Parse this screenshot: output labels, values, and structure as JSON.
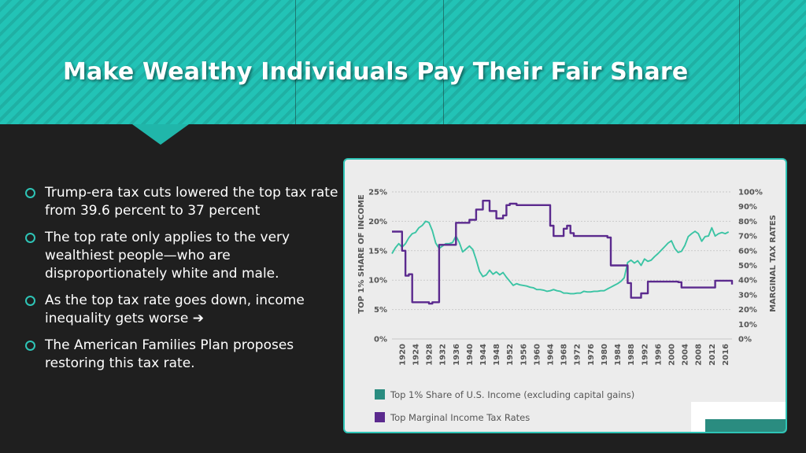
{
  "slide": {
    "title": "Make Wealthy Individuals Pay Their Fair Share",
    "bullets": [
      "Trump-era tax cuts lowered the top tax rate from 39.6 percent to 37 percent",
      "The top rate only applies to the very wealthiest people—who are disproportionately white and male.",
      "As the top tax rate goes down, income inequality gets worse ➔",
      "The American Families Plan proposes restoring this tax rate."
    ],
    "colors": {
      "accent": "#2ec4b6",
      "background": "#1f1f1f"
    }
  },
  "chart_data": {
    "type": "line",
    "xlabel": "",
    "ylabel_left": "TOP 1% SHARE OF INCOME",
    "ylabel_right": "MARGINAL TAX RATES",
    "xlim": [
      1917,
      2018
    ],
    "ylim_left": [
      0,
      25
    ],
    "ylim_right": [
      0,
      100
    ],
    "x_ticks": [
      "1920",
      "1924",
      "1928",
      "1932",
      "1936",
      "1940",
      "1944",
      "1948",
      "1952",
      "1956",
      "1960",
      "1964",
      "1968",
      "1972",
      "1976",
      "1980",
      "1984",
      "1988",
      "1992",
      "1996",
      "2000",
      "2004",
      "2008",
      "2012",
      "2016"
    ],
    "y_ticks_left": [
      "0%",
      "5%",
      "10%",
      "15%",
      "20%",
      "25%"
    ],
    "y_ticks_right": [
      "0%",
      "10%",
      "20%",
      "30%",
      "40%",
      "50%",
      "60%",
      "70%",
      "80%",
      "90%",
      "100%"
    ],
    "grid": true,
    "legend_placement": "bottom",
    "series": [
      {
        "name": "Top 1% Share of U.S. Income (excluding capital gains)",
        "axis": "left",
        "color": "#3bc4a4",
        "points": [
          [
            1917,
            14.5
          ],
          [
            1918,
            15.5
          ],
          [
            1919,
            16.2
          ],
          [
            1920,
            15.6
          ],
          [
            1921,
            16.2
          ],
          [
            1922,
            17.2
          ],
          [
            1923,
            17.9
          ],
          [
            1924,
            18.1
          ],
          [
            1925,
            18.9
          ],
          [
            1926,
            19.3
          ],
          [
            1927,
            20.0
          ],
          [
            1928,
            19.8
          ],
          [
            1929,
            18.4
          ],
          [
            1930,
            16.3
          ],
          [
            1931,
            15.4
          ],
          [
            1932,
            15.8
          ],
          [
            1933,
            16.2
          ],
          [
            1934,
            16.2
          ],
          [
            1935,
            16.4
          ],
          [
            1936,
            17.5
          ],
          [
            1937,
            16.4
          ],
          [
            1938,
            14.8
          ],
          [
            1939,
            15.3
          ],
          [
            1940,
            15.8
          ],
          [
            1941,
            15.2
          ],
          [
            1942,
            13.5
          ],
          [
            1943,
            11.5
          ],
          [
            1944,
            10.6
          ],
          [
            1945,
            10.9
          ],
          [
            1946,
            11.7
          ],
          [
            1947,
            11.0
          ],
          [
            1948,
            11.4
          ],
          [
            1949,
            10.9
          ],
          [
            1950,
            11.3
          ],
          [
            1951,
            10.5
          ],
          [
            1952,
            9.8
          ],
          [
            1953,
            9.1
          ],
          [
            1954,
            9.4
          ],
          [
            1955,
            9.2
          ],
          [
            1956,
            9.1
          ],
          [
            1957,
            9.0
          ],
          [
            1958,
            8.8
          ],
          [
            1959,
            8.7
          ],
          [
            1960,
            8.4
          ],
          [
            1961,
            8.4
          ],
          [
            1962,
            8.3
          ],
          [
            1963,
            8.1
          ],
          [
            1964,
            8.2
          ],
          [
            1965,
            8.4
          ],
          [
            1966,
            8.2
          ],
          [
            1967,
            8.1
          ],
          [
            1968,
            7.8
          ],
          [
            1969,
            7.8
          ],
          [
            1970,
            7.7
          ],
          [
            1971,
            7.7
          ],
          [
            1972,
            7.8
          ],
          [
            1973,
            7.8
          ],
          [
            1974,
            8.1
          ],
          [
            1975,
            8.0
          ],
          [
            1976,
            8.0
          ],
          [
            1977,
            8.1
          ],
          [
            1978,
            8.1
          ],
          [
            1979,
            8.2
          ],
          [
            1980,
            8.2
          ],
          [
            1981,
            8.5
          ],
          [
            1982,
            8.8
          ],
          [
            1983,
            9.1
          ],
          [
            1984,
            9.4
          ],
          [
            1985,
            9.8
          ],
          [
            1986,
            10.4
          ],
          [
            1987,
            13.0
          ],
          [
            1988,
            13.4
          ],
          [
            1989,
            12.9
          ],
          [
            1990,
            13.3
          ],
          [
            1991,
            12.5
          ],
          [
            1992,
            13.6
          ],
          [
            1993,
            13.2
          ],
          [
            1994,
            13.4
          ],
          [
            1995,
            14.0
          ],
          [
            1996,
            14.5
          ],
          [
            1997,
            15.1
          ],
          [
            1998,
            15.7
          ],
          [
            1999,
            16.3
          ],
          [
            2000,
            16.7
          ],
          [
            2001,
            15.4
          ],
          [
            2002,
            14.7
          ],
          [
            2003,
            14.9
          ],
          [
            2004,
            15.9
          ],
          [
            2005,
            17.4
          ],
          [
            2006,
            17.9
          ],
          [
            2007,
            18.3
          ],
          [
            2008,
            17.9
          ],
          [
            2009,
            16.6
          ],
          [
            2010,
            17.4
          ],
          [
            2011,
            17.5
          ],
          [
            2012,
            18.9
          ],
          [
            2013,
            17.5
          ],
          [
            2014,
            17.9
          ],
          [
            2015,
            18.1
          ],
          [
            2016,
            17.9
          ],
          [
            2017,
            18.2
          ]
        ]
      },
      {
        "name": "Top Marginal Income Tax Rates",
        "axis": "right",
        "color": "#5b2a8e",
        "points": [
          [
            1917,
            73
          ],
          [
            1918,
            73
          ],
          [
            1919,
            73
          ],
          [
            1920,
            60
          ],
          [
            1921,
            43
          ],
          [
            1922,
            44
          ],
          [
            1923,
            25
          ],
          [
            1924,
            25
          ],
          [
            1925,
            25
          ],
          [
            1926,
            25
          ],
          [
            1927,
            25
          ],
          [
            1928,
            24
          ],
          [
            1929,
            25
          ],
          [
            1930,
            25
          ],
          [
            1931,
            64
          ],
          [
            1932,
            64
          ],
          [
            1933,
            64
          ],
          [
            1934,
            64
          ],
          [
            1935,
            64
          ],
          [
            1936,
            79
          ],
          [
            1937,
            79
          ],
          [
            1938,
            79
          ],
          [
            1939,
            79
          ],
          [
            1940,
            81
          ],
          [
            1941,
            81
          ],
          [
            1942,
            88
          ],
          [
            1943,
            88
          ],
          [
            1944,
            94
          ],
          [
            1945,
            94
          ],
          [
            1946,
            87
          ],
          [
            1947,
            87
          ],
          [
            1948,
            82
          ],
          [
            1949,
            82
          ],
          [
            1950,
            84
          ],
          [
            1951,
            91
          ],
          [
            1952,
            92
          ],
          [
            1953,
            92
          ],
          [
            1954,
            91
          ],
          [
            1955,
            91
          ],
          [
            1956,
            91
          ],
          [
            1957,
            91
          ],
          [
            1958,
            91
          ],
          [
            1959,
            91
          ],
          [
            1960,
            91
          ],
          [
            1961,
            91
          ],
          [
            1962,
            91
          ],
          [
            1963,
            91
          ],
          [
            1964,
            77
          ],
          [
            1965,
            70
          ],
          [
            1966,
            70
          ],
          [
            1967,
            70
          ],
          [
            1968,
            75
          ],
          [
            1969,
            77
          ],
          [
            1970,
            72
          ],
          [
            1971,
            70
          ],
          [
            1972,
            70
          ],
          [
            1973,
            70
          ],
          [
            1974,
            70
          ],
          [
            1975,
            70
          ],
          [
            1976,
            70
          ],
          [
            1977,
            70
          ],
          [
            1978,
            70
          ],
          [
            1979,
            70
          ],
          [
            1980,
            70
          ],
          [
            1981,
            69
          ],
          [
            1982,
            50
          ],
          [
            1983,
            50
          ],
          [
            1984,
            50
          ],
          [
            1985,
            50
          ],
          [
            1986,
            50
          ],
          [
            1987,
            38
          ],
          [
            1988,
            28
          ],
          [
            1989,
            28
          ],
          [
            1990,
            28
          ],
          [
            1991,
            31
          ],
          [
            1992,
            31
          ],
          [
            1993,
            39
          ],
          [
            1994,
            39
          ],
          [
            1995,
            39
          ],
          [
            1996,
            39
          ],
          [
            1997,
            39
          ],
          [
            1998,
            39
          ],
          [
            1999,
            39
          ],
          [
            2000,
            39
          ],
          [
            2001,
            39
          ],
          [
            2002,
            38.6
          ],
          [
            2003,
            35
          ],
          [
            2004,
            35
          ],
          [
            2005,
            35
          ],
          [
            2006,
            35
          ],
          [
            2007,
            35
          ],
          [
            2008,
            35
          ],
          [
            2009,
            35
          ],
          [
            2010,
            35
          ],
          [
            2011,
            35
          ],
          [
            2012,
            35
          ],
          [
            2013,
            39.6
          ],
          [
            2014,
            39.6
          ],
          [
            2015,
            39.6
          ],
          [
            2016,
            39.6
          ],
          [
            2017,
            39.6
          ],
          [
            2018,
            37
          ]
        ]
      }
    ]
  }
}
